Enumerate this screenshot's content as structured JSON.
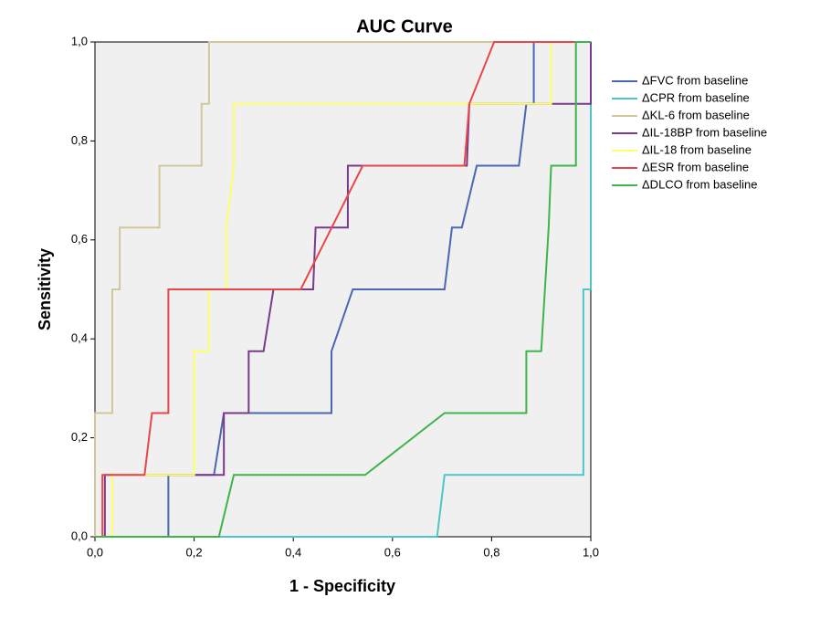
{
  "chart_data": {
    "type": "line",
    "title": "AUC Curve",
    "x_label": "1 - Specificity",
    "y_label": "Sensitivity",
    "xlim": [
      0,
      1
    ],
    "ylim": [
      0,
      1
    ],
    "xticks": [
      {
        "value": 0,
        "label": "0,0"
      },
      {
        "value": 0.2,
        "label": "0,2"
      },
      {
        "value": 0.4,
        "label": "0,4"
      },
      {
        "value": 0.6,
        "label": "0,6"
      },
      {
        "value": 0.8,
        "label": "0,8"
      },
      {
        "value": 1,
        "label": "1,0"
      }
    ],
    "yticks": [
      {
        "value": 0,
        "label": "0,0"
      },
      {
        "value": 0.2,
        "label": "0,2"
      },
      {
        "value": 0.4,
        "label": "0,4"
      },
      {
        "value": 0.6,
        "label": "0,6"
      },
      {
        "value": 0.8,
        "label": "0,8"
      },
      {
        "value": 1,
        "label": "1,0"
      }
    ],
    "legend": "right",
    "series": [
      {
        "name": "ΔFVC from baseline",
        "color": "#4a67b5",
        "x": [
          0,
          0.148,
          0.148,
          0.24,
          0.26,
          0.477,
          0.477,
          0.52,
          0.705,
          0.72,
          0.74,
          0.77,
          0.855,
          0.87,
          0.885,
          0.885,
          1
        ],
        "values": [
          0,
          0,
          0.125,
          0.125,
          0.25,
          0.25,
          0.375,
          0.5,
          0.5,
          0.625,
          0.625,
          0.75,
          0.75,
          0.875,
          0.875,
          1,
          1
        ]
      },
      {
        "name": "ΔCPR from baseline",
        "color": "#4fc6c6",
        "x": [
          0,
          0.69,
          0.705,
          0.985,
          0.985,
          1,
          1
        ],
        "values": [
          0,
          0,
          0.125,
          0.125,
          0.5,
          0.5,
          1
        ]
      },
      {
        "name": "ΔKL-6 from baseline",
        "color": "#d2c79a",
        "x": [
          0,
          0,
          0.035,
          0.035,
          0.05,
          0.05,
          0.13,
          0.13,
          0.215,
          0.215,
          0.23,
          0.23,
          1
        ],
        "values": [
          0,
          0.25,
          0.25,
          0.5,
          0.5,
          0.625,
          0.625,
          0.75,
          0.75,
          0.875,
          0.875,
          1,
          1
        ]
      },
      {
        "name": "ΔIL-18BP from baseline",
        "color": "#7a3a8a",
        "x": [
          0,
          0.02,
          0.02,
          0.26,
          0.26,
          0.31,
          0.31,
          0.34,
          0.36,
          0.44,
          0.445,
          0.51,
          0.51,
          0.75,
          0.755,
          1,
          1
        ],
        "values": [
          0,
          0,
          0.125,
          0.125,
          0.25,
          0.25,
          0.375,
          0.375,
          0.5,
          0.5,
          0.625,
          0.625,
          0.75,
          0.75,
          0.875,
          0.875,
          1
        ]
      },
      {
        "name": "ΔIL-18 from baseline",
        "color": "#ffff66",
        "x": [
          0,
          0.035,
          0.035,
          0.2,
          0.2,
          0.23,
          0.23,
          0.265,
          0.265,
          0.28,
          0.28,
          0.92,
          0.92,
          1
        ],
        "values": [
          0,
          0,
          0.125,
          0.125,
          0.375,
          0.375,
          0.5,
          0.5,
          0.625,
          0.75,
          0.875,
          0.875,
          1,
          1
        ]
      },
      {
        "name": "ΔESR from baseline",
        "color": "#e8474a",
        "x": [
          0,
          0.015,
          0.015,
          0.1,
          0.115,
          0.148,
          0.148,
          0.415,
          0.54,
          0.745,
          0.755,
          0.805,
          1
        ],
        "values": [
          0,
          0,
          0.125,
          0.125,
          0.25,
          0.25,
          0.5,
          0.5,
          0.75,
          0.75,
          0.875,
          1,
          1
        ]
      },
      {
        "name": "ΔDLCO from baseline",
        "color": "#3fb44a",
        "x": [
          0,
          0.25,
          0.28,
          0.545,
          0.705,
          0.87,
          0.87,
          0.9,
          0.915,
          0.92,
          0.97,
          0.97,
          1
        ],
        "values": [
          0,
          0,
          0.125,
          0.125,
          0.25,
          0.25,
          0.375,
          0.375,
          0.625,
          0.75,
          0.75,
          1,
          1
        ]
      }
    ]
  }
}
